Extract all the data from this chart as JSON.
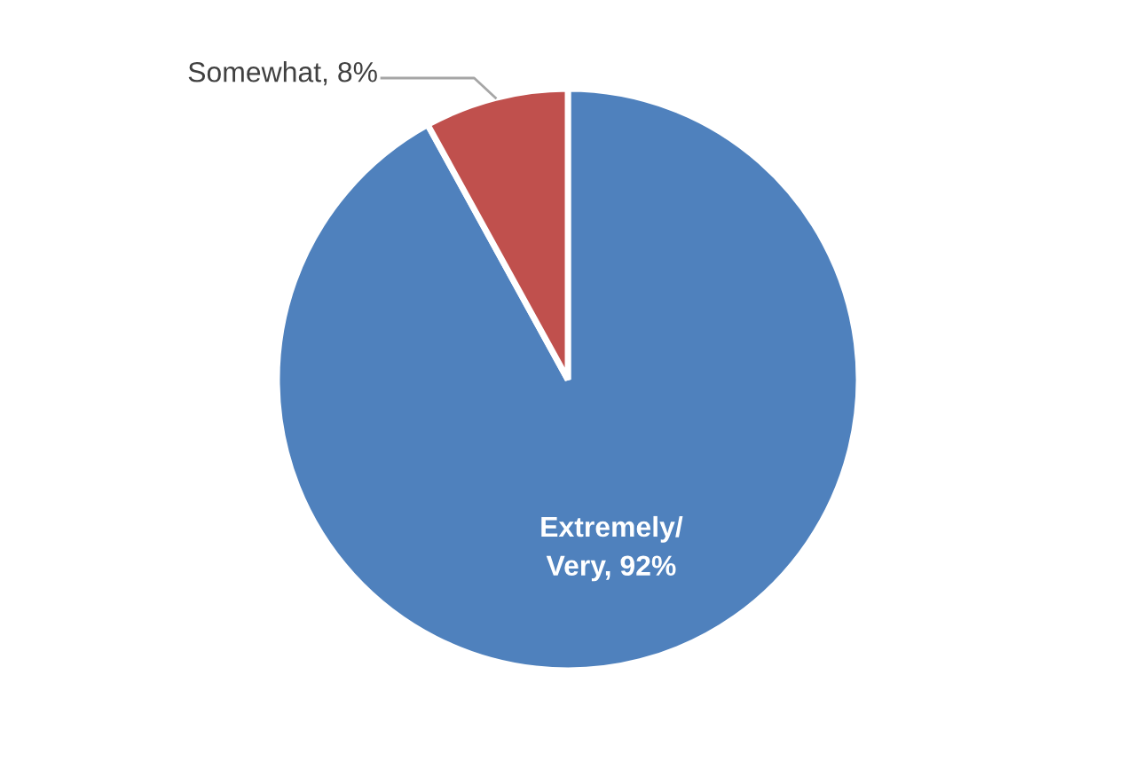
{
  "chart_data": {
    "type": "pie",
    "categories": [
      "Extremely/\nVery",
      "Somewhat"
    ],
    "values": [
      92,
      8
    ],
    "colors": [
      "#4f81bd",
      "#c0504d"
    ],
    "value_labels": [
      "92%",
      "8%"
    ],
    "legend": false
  }
}
